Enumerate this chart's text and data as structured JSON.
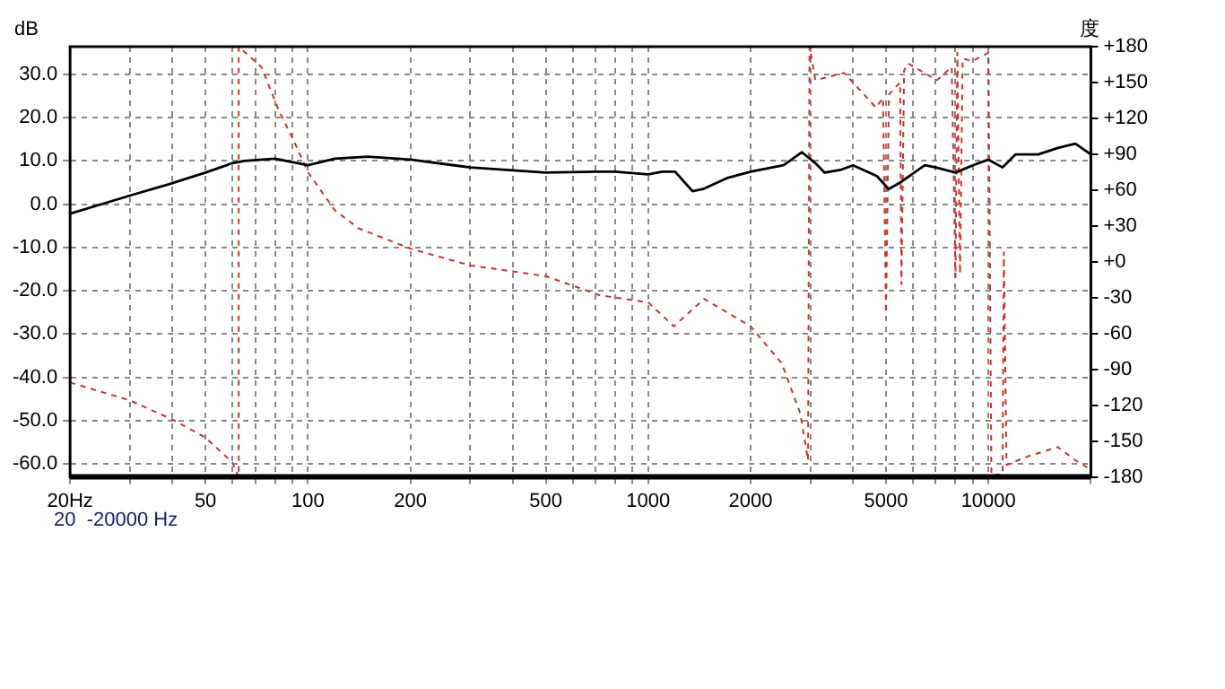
{
  "chart_data": {
    "type": "line",
    "ylabel": "dB",
    "y2label": "度",
    "annotations": [
      "20  -20000 Hz"
    ],
    "xlim": [
      20,
      20000
    ],
    "xticks": [
      {
        "value": 20,
        "label": "20Hz"
      },
      {
        "value": 30,
        "label": null
      },
      {
        "value": 40,
        "label": null
      },
      50,
      {
        "value": 60,
        "label": null
      },
      {
        "value": 70,
        "label": null
      },
      {
        "value": 80,
        "label": null
      },
      {
        "value": 90,
        "label": null
      },
      100,
      200,
      {
        "value": 300,
        "label": null
      },
      {
        "value": 400,
        "label": null
      },
      500,
      {
        "value": 600,
        "label": null
      },
      {
        "value": 700,
        "label": null
      },
      {
        "value": 800,
        "label": null
      },
      {
        "value": 900,
        "label": null
      },
      1000,
      2000,
      {
        "value": 3000,
        "label": null
      },
      {
        "value": 4000,
        "label": null
      },
      5000,
      {
        "value": 6000,
        "label": null
      },
      {
        "value": 7000,
        "label": null
      },
      {
        "value": 8000,
        "label": null
      },
      {
        "value": 9000,
        "label": null
      },
      10000,
      {
        "value": 20000,
        "label": null
      }
    ],
    "log": "x",
    "ylim": [
      -63,
      36.4
    ],
    "yticks": [
      {
        "value": 30,
        "label": "30.0"
      },
      {
        "value": 20,
        "label": "20.0"
      },
      {
        "value": 10,
        "label": "10.0"
      },
      {
        "value": 0,
        "label": "0.0"
      },
      {
        "value": -10,
        "label": "-10.0"
      },
      {
        "value": -20,
        "label": "-20.0"
      },
      {
        "value": -30,
        "label": "-30.0"
      },
      {
        "value": -40,
        "label": "-40.0"
      },
      {
        "value": -50,
        "label": "-50.0"
      },
      {
        "value": -60,
        "label": "-60.0"
      }
    ],
    "y2lim": [
      -180,
      180
    ],
    "y2ticks": [
      {
        "value": 180,
        "label": "+180"
      },
      {
        "value": 150,
        "label": "+150"
      },
      {
        "value": 120,
        "label": "+120"
      },
      {
        "value": 90,
        "label": "+90"
      },
      {
        "value": 60,
        "label": "+60"
      },
      {
        "value": 30,
        "label": "+30"
      },
      {
        "value": 0,
        "label": "+0"
      },
      -30,
      -60,
      -90,
      -120,
      -150,
      -180
    ],
    "grid": true,
    "legend": false,
    "marker": "none",
    "series": [
      {
        "color": "#000000",
        "line_style": "solid",
        "x": [
          20,
          30,
          39,
          50,
          60,
          65,
          80,
          100,
          120,
          150,
          200,
          300,
          500,
          700,
          800,
          1000,
          1100,
          1200,
          1350,
          1450,
          1700,
          2000,
          2500,
          2830,
          3100,
          3300,
          3700,
          4000,
          4700,
          5090,
          5500,
          6500,
          7000,
          8000,
          9000,
          10000,
          11000,
          12000,
          14000,
          16000,
          18000,
          20000
        ],
        "values": [
          -2.2,
          2,
          4.6,
          7.3,
          9.5,
          10,
          10.5,
          9,
          10.5,
          11,
          10.3,
          8.5,
          7.3,
          7.5,
          7.5,
          6.9,
          7.5,
          7.5,
          3,
          3.5,
          6,
          7.5,
          9,
          12,
          9.5,
          7.3,
          8,
          9,
          6.5,
          3.5,
          5,
          9,
          8.5,
          7.3,
          9,
          10.3,
          8.5,
          11.5,
          11.5,
          13,
          14,
          11.5
        ]
      },
      {
        "color": "#cc3333",
        "line_style": "dashed",
        "axis": "y2",
        "x": [
          20,
          30,
          40,
          50,
          60,
          62.6,
          62.6,
          73,
          82,
          91,
          100,
          120,
          141,
          200,
          300,
          500,
          720,
          1000,
          1190,
          1460,
          2000,
          2470,
          2800,
          2950,
          2980,
          3100,
          3770,
          4670,
          4900,
          5000,
          5100,
          5500,
          5550,
          5650,
          5800,
          7060,
          7800,
          8000,
          8100,
          8250,
          8400,
          9000,
          10000,
          10200,
          11000,
          11100,
          11300,
          13000,
          16000,
          18000,
          20000
        ],
        "values": [
          -101,
          -116,
          -132,
          -147,
          -168,
          -180,
          180,
          163,
          127,
          101,
          75,
          43,
          28,
          11,
          -3,
          -12,
          -28,
          -34,
          -54,
          -31,
          -54,
          -85,
          -127,
          -166,
          180,
          152,
          158,
          129,
          137,
          -43,
          140,
          150,
          -19,
          160,
          166,
          152,
          163,
          -13,
          175,
          -10,
          170,
          168,
          175,
          -178,
          -178,
          8,
          -170,
          -163,
          -155,
          -166,
          -174
        ]
      }
    ]
  }
}
